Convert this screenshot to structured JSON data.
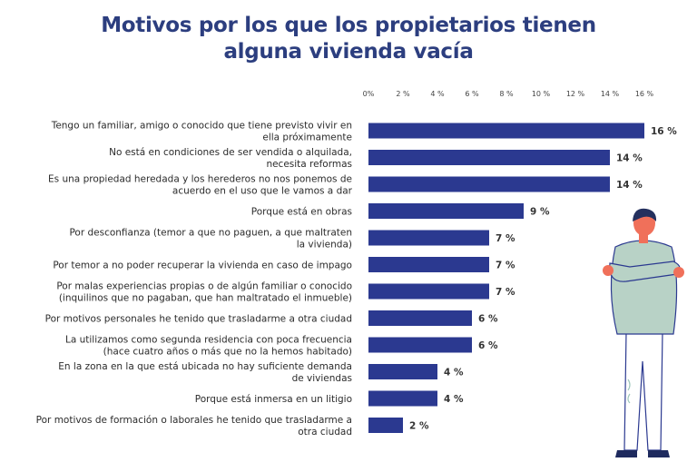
{
  "title_lines": [
    "Motivos por los que los propietarios tienen",
    "alguna vivienda vacía"
  ],
  "colors": {
    "title": "#2c3e7f",
    "bar": "#2b3990",
    "figure_shirt": "#b8d2c6",
    "figure_skin": "#f0705a",
    "figure_hair": "#24305e",
    "figure_pants": "#ffffff",
    "figure_shoes": "#1e2a5e"
  },
  "chart_data": {
    "type": "bar",
    "orientation": "horizontal",
    "x_ticks": [
      "0%",
      "2 %",
      "4 %",
      "6 %",
      "8 %",
      "10 %",
      "12 %",
      "14 %",
      "16 %"
    ],
    "xlim": [
      0,
      16
    ],
    "grid": false,
    "categories": [
      [
        "Tengo un familiar, amigo o conocido que tiene previsto vivir en",
        "ella próximamente"
      ],
      [
        "No está en condiciones de ser vendida o alquilada,",
        "necesita reformas"
      ],
      [
        "Es una propiedad heredada y los herederos no nos ponemos de",
        "acuerdo en el uso que le vamos a dar"
      ],
      [
        "Porque está en obras"
      ],
      [
        "Por desconfianza (temor a que no paguen, a que maltraten",
        "la vivienda)"
      ],
      [
        "Por temor a no poder recuperar la vivienda en caso de impago"
      ],
      [
        "Por malas experiencias propias o de algún familiar o conocido",
        "(inquilinos que no pagaban, que han maltratado el inmueble)"
      ],
      [
        "Por motivos personales he tenido que trasladarme a otra ciudad"
      ],
      [
        "La utilizamos como segunda residencia con poca frecuencia",
        "(hace cuatro años o más que no la hemos habitado)"
      ],
      [
        "En la zona en la que está ubicada no hay suficiente demanda",
        "de viviendas"
      ],
      [
        "Porque está inmersa en un litigio"
      ],
      [
        "Por motivos de formación o laborales he tenido que trasladarme a",
        "otra ciudad"
      ]
    ],
    "values": [
      16,
      14,
      14,
      9,
      7,
      7,
      7,
      6,
      6,
      4,
      4,
      2
    ],
    "value_labels": [
      "16 %",
      "14 %",
      "14 %",
      "9 %",
      "7 %",
      "7 %",
      "7 %",
      "6 %",
      "6 %",
      "4 %",
      "4 %",
      "2 %"
    ]
  }
}
